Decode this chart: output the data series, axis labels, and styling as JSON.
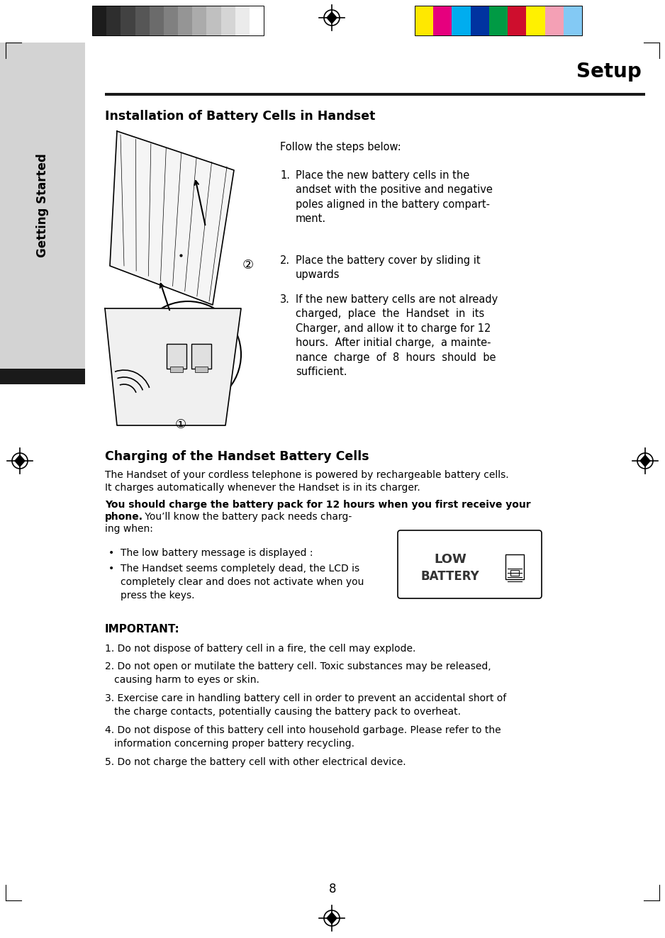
{
  "bg_color": "#ffffff",
  "sidebar_color": "#d3d3d3",
  "sidebar_dark_color": "#1a1a1a",
  "sidebar_text": "Getting Started",
  "page_number": "8",
  "title": "Setup",
  "section1_heading": "Installation of Battery Cells in Handset",
  "follow_text": "Follow the steps below:",
  "section2_heading": "Charging of the Handset Battery Cells",
  "para1_line1": "The Handset of your cordless telephone is powered by rechargeable battery cells.",
  "para1_line2": "It charges automatically whenever the Handset is in its charger.",
  "para2_bold": "You should charge the battery pack for 12 hours when you first receive your\nphone.",
  "para2_normal": " You’ll know the battery pack needs charg-\ning when:",
  "bullet1": "The low battery message is displayed :",
  "bullet2": "The Handset seems completely dead, the LCD is\ncompletely clear and does not activate when you\npress the keys.",
  "important_heading": "IMPORTANT:",
  "imp1": "1. Do not dispose of battery cell in a fire, the cell may explode.",
  "imp2": "2. Do not open or mutilate the battery cell. Toxic substances may be released,\n   causing harm to eyes or skin.",
  "imp3": "3. Exercise care in handling battery cell in order to prevent an accidental short of\n   the charge contacts, potentially causing the battery pack to overheat.",
  "imp4": "4. Do not dispose of this battery cell into household garbage. Please refer to the\n   information concerning proper battery recycling.",
  "imp5": "5. Do not charge the battery cell with other electrical device.",
  "bw_bar_colors": [
    "#1c1c1c",
    "#2e2e2e",
    "#424242",
    "#565656",
    "#6b6b6b",
    "#808080",
    "#959595",
    "#ababab",
    "#c0c0c0",
    "#d5d5d5",
    "#ebebeb",
    "#ffffff"
  ],
  "color_bar_colors": [
    "#ffe800",
    "#e6007e",
    "#00adef",
    "#0033a0",
    "#009a44",
    "#ce0e2d",
    "#fff100",
    "#f4a0b5",
    "#83c9f4"
  ]
}
